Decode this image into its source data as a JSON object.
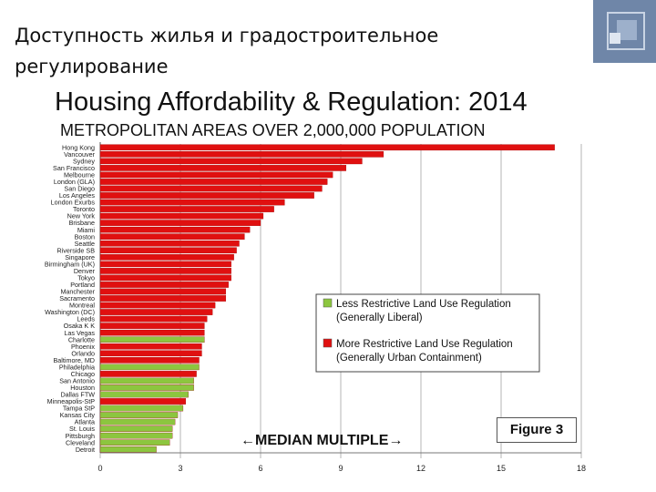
{
  "slide": {
    "title": "Доступность жилья и градостроительное регулирование"
  },
  "colors": {
    "restrictive": "#e01010",
    "liberal": "#8cc63f",
    "logo_outer": "#6f86a8",
    "logo_inner": "#9db0cb"
  },
  "chart_data": {
    "type": "bar",
    "orientation": "horizontal",
    "title": "Housing Affordability & Regulation: 2014",
    "subtitle": "METROPOLITAN AREAS OVER 2,000,000 POPULATION",
    "xlabel": "←MEDIAN MULTIPLE→",
    "xlim": [
      0,
      18
    ],
    "xticks": [
      "0",
      "3",
      "6",
      "9",
      "12",
      "15",
      "18"
    ],
    "grid": "vertical",
    "figure_label": "Figure 3",
    "legend_placement": "center-right",
    "legend": [
      {
        "key": "liberal",
        "line1": "Less Restrictive Land Use Regulation",
        "line2": "(Generally Liberal)"
      },
      {
        "key": "restrictive",
        "line1": "More Restrictive Land Use Regulation",
        "line2": "(Generally Urban Containment)"
      }
    ],
    "categories": [
      "Hong Kong",
      "Vancouver",
      "Sydney",
      "San Francisco",
      "Melbourne",
      "London (GLA)",
      "San Diego",
      "Los Angeles",
      "London Exurbs",
      "Toronto",
      "New York",
      "Brisbane",
      "Miami",
      "Boston",
      "Seattle",
      "Riverside SB",
      "Singapore",
      "Birmingham (UK)",
      "Denver",
      "Tokyo",
      "Portland",
      "Manchester",
      "Sacramento",
      "Montreal",
      "Washington (DC)",
      "Leeds",
      "Osaka K K",
      "Las Vegas",
      "Charlotte",
      "Phoenix",
      "Orlando",
      "Baltimore, MD",
      "Philadelphia",
      "Chicago",
      "San Antonio",
      "Houston",
      "Dallas FTW",
      "Minneapolis-StP",
      "Tampa StP",
      "Kansas City",
      "Atlanta",
      "St. Louis",
      "Pittsburgh",
      "Cleveland",
      "Detroit"
    ],
    "values": [
      17.0,
      10.6,
      9.8,
      9.2,
      8.7,
      8.5,
      8.3,
      8.0,
      6.9,
      6.5,
      6.1,
      6.0,
      5.6,
      5.4,
      5.2,
      5.1,
      5.0,
      4.9,
      4.9,
      4.9,
      4.8,
      4.7,
      4.7,
      4.3,
      4.2,
      4.0,
      3.9,
      3.9,
      3.9,
      3.8,
      3.8,
      3.7,
      3.7,
      3.6,
      3.5,
      3.5,
      3.3,
      3.2,
      3.1,
      2.9,
      2.8,
      2.7,
      2.7,
      2.6,
      2.1
    ],
    "regulation": [
      "restrictive",
      "restrictive",
      "restrictive",
      "restrictive",
      "restrictive",
      "restrictive",
      "restrictive",
      "restrictive",
      "restrictive",
      "restrictive",
      "restrictive",
      "restrictive",
      "restrictive",
      "restrictive",
      "restrictive",
      "restrictive",
      "restrictive",
      "restrictive",
      "restrictive",
      "restrictive",
      "restrictive",
      "restrictive",
      "restrictive",
      "restrictive",
      "restrictive",
      "restrictive",
      "restrictive",
      "restrictive",
      "liberal",
      "restrictive",
      "restrictive",
      "restrictive",
      "liberal",
      "restrictive",
      "liberal",
      "liberal",
      "liberal",
      "restrictive",
      "liberal",
      "liberal",
      "liberal",
      "liberal",
      "liberal",
      "liberal",
      "liberal"
    ]
  }
}
